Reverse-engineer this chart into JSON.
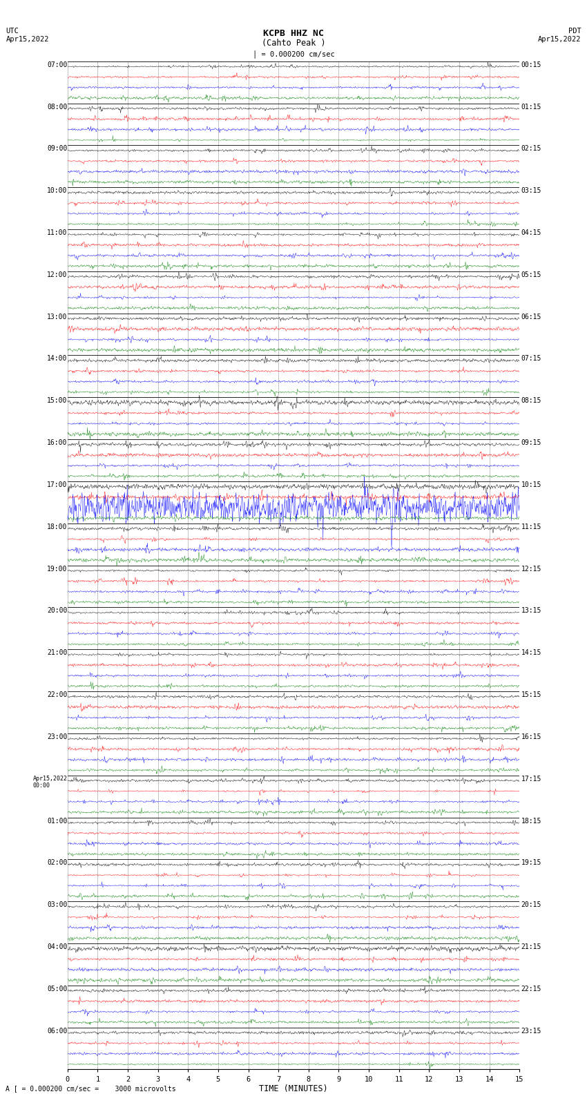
{
  "title_line1": "KCPB HHZ NC",
  "title_line2": "(Cahto Peak )",
  "scale_label": "= 0.000200 cm/sec",
  "bottom_label": "A [ = 0.000200 cm/sec =    3000 microvolts",
  "utc_label": "UTC\nApr15,2022",
  "pdt_label": "PDT\nApr15,2022",
  "xlabel": "TIME (MINUTES)",
  "left_times_utc": [
    "07:00",
    "08:00",
    "09:00",
    "10:00",
    "11:00",
    "12:00",
    "13:00",
    "14:00",
    "15:00",
    "16:00",
    "17:00",
    "18:00",
    "19:00",
    "20:00",
    "21:00",
    "22:00",
    "23:00",
    "Apr15,2022\n00:00",
    "01:00",
    "02:00",
    "03:00",
    "04:00",
    "05:00",
    "06:00"
  ],
  "right_times_pdt": [
    "00:15",
    "01:15",
    "02:15",
    "03:15",
    "04:15",
    "05:15",
    "06:15",
    "07:15",
    "08:15",
    "09:15",
    "10:15",
    "11:15",
    "12:15",
    "13:15",
    "14:15",
    "15:15",
    "16:15",
    "17:15",
    "18:15",
    "19:15",
    "20:15",
    "21:15",
    "22:15",
    "23:15"
  ],
  "colors": [
    "black",
    "red",
    "blue",
    "green"
  ],
  "n_rows": 24,
  "n_traces_per_row": 4,
  "xmin": 0,
  "xmax": 15,
  "xticks": [
    0,
    1,
    2,
    3,
    4,
    5,
    6,
    7,
    8,
    9,
    10,
    11,
    12,
    13,
    14,
    15
  ],
  "background_color": "white",
  "grid_color": "#888888",
  "special_row_10": 10,
  "special_row_11": 11
}
